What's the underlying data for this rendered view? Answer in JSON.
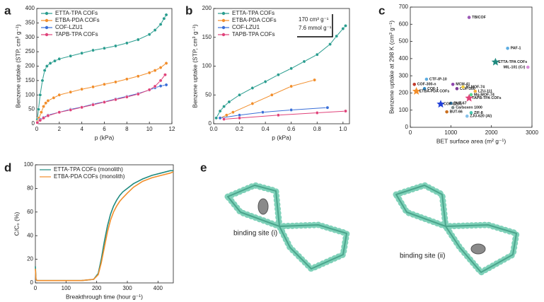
{
  "panels": [
    "a",
    "b",
    "c",
    "d",
    "e"
  ],
  "panel_e_labels": [
    "binding site (i)",
    "binding site (ii)"
  ],
  "chart_data": [
    {
      "type": "line",
      "xlabel": "p (kPa)",
      "ylabel": "Benzene uptake (STP, cm³ g⁻¹)",
      "xlim": [
        0,
        12
      ],
      "xticks": [
        0,
        2,
        4,
        6,
        8,
        10,
        12
      ],
      "ylim": [
        0,
        400
      ],
      "yticks": [
        0,
        50,
        100,
        150,
        200,
        250,
        300,
        350,
        400
      ],
      "legend": "upper left",
      "markers": true,
      "series": [
        {
          "name": "ETTA-TPA COFs",
          "color": "#2a9d8f",
          "x": [
            0.05,
            0.15,
            0.3,
            0.5,
            0.7,
            0.9,
            1.2,
            1.6,
            2,
            3,
            4,
            5,
            6,
            7,
            8,
            9,
            10,
            10.5,
            11,
            11.3,
            11.5
          ],
          "values": [
            15,
            50,
            100,
            150,
            185,
            200,
            210,
            218,
            225,
            235,
            245,
            255,
            262,
            270,
            280,
            292,
            310,
            325,
            345,
            365,
            378
          ]
        },
        {
          "name": "ETBA-PDA COFs",
          "color": "#f28e2b",
          "x": [
            0.05,
            0.2,
            0.4,
            0.6,
            0.8,
            1,
            1.5,
            2,
            3,
            4,
            5,
            6,
            7,
            8,
            9,
            10,
            10.5,
            11,
            11.5
          ],
          "values": [
            8,
            20,
            40,
            60,
            72,
            80,
            90,
            100,
            110,
            120,
            128,
            137,
            145,
            155,
            165,
            177,
            185,
            195,
            210
          ]
        },
        {
          "name": "COF-LZU1",
          "color": "#3a6fd8",
          "x": [
            0.05,
            0.3,
            0.6,
            1,
            2,
            3,
            4,
            5,
            6,
            7,
            8,
            9,
            10,
            10.5,
            11,
            11.5
          ],
          "values": [
            5,
            15,
            22,
            30,
            40,
            50,
            58,
            68,
            76,
            86,
            95,
            105,
            117,
            125,
            131,
            135
          ]
        },
        {
          "name": "TAPB-TPA COFs",
          "color": "#e0427a",
          "x": [
            0.05,
            0.3,
            0.6,
            1,
            2,
            3,
            4,
            5,
            6,
            7,
            8,
            9,
            10,
            10.5,
            11,
            11.4
          ],
          "values": [
            4,
            12,
            20,
            28,
            40,
            48,
            57,
            66,
            75,
            84,
            93,
            103,
            118,
            130,
            150,
            170
          ]
        }
      ]
    },
    {
      "type": "line",
      "xlabel": "p (kPa)",
      "ylabel": "Benzene uptake (STP, cm³ g⁻¹)",
      "xlim": [
        0,
        1.05
      ],
      "xticks": [
        {
          "value": 0,
          "label": "0.0"
        },
        {
          "value": 0.2,
          "label": "0.2"
        },
        {
          "value": 0.4,
          "label": "0.4"
        },
        {
          "value": 0.6,
          "label": "0.6"
        },
        {
          "value": 0.8,
          "label": "0.8"
        },
        {
          "value": 1,
          "label": "1.0"
        }
      ],
      "ylim": [
        0,
        200
      ],
      "yticks": [
        0,
        50,
        100,
        150,
        200
      ],
      "legend": "upper left",
      "markers": true,
      "annotations": [
        "170 cm³ g⁻¹",
        "7.6 mmol g⁻¹"
      ],
      "series": [
        {
          "name": "ETTA-TPA COFs",
          "color": "#2a9d8f",
          "x": [
            0.02,
            0.05,
            0.08,
            0.12,
            0.2,
            0.3,
            0.4,
            0.5,
            0.6,
            0.7,
            0.8,
            0.9,
            0.95,
            1.0,
            1.02
          ],
          "values": [
            10,
            22,
            30,
            38,
            50,
            62,
            73,
            85,
            96,
            108,
            120,
            138,
            152,
            165,
            170
          ]
        },
        {
          "name": "ETBA-PDA COFs",
          "color": "#f28e2b",
          "x": [
            0.05,
            0.1,
            0.15,
            0.3,
            0.45,
            0.6,
            0.78
          ],
          "values": [
            10,
            15,
            20,
            35,
            50,
            65,
            76
          ]
        },
        {
          "name": "COF-LZU1",
          "color": "#3a6fd8",
          "x": [
            0.05,
            0.2,
            0.38,
            0.6,
            0.88
          ],
          "values": [
            10,
            15,
            20,
            24,
            28
          ]
        },
        {
          "name": "TAPB-TPA COFs",
          "color": "#e0427a",
          "x": [
            0.08,
            0.2,
            0.5,
            0.8,
            1.02
          ],
          "values": [
            8,
            10,
            15,
            19,
            22
          ]
        }
      ]
    },
    {
      "type": "scatter",
      "xlabel": "BET surface area (m² g⁻¹)",
      "ylabel": "Benzene uptake at 298 K (cm³ g⁻¹)",
      "xlim": [
        0,
        3000
      ],
      "xticks": [
        0,
        1000,
        2000,
        3000
      ],
      "ylim": [
        0,
        700
      ],
      "yticks": [
        0,
        100,
        200,
        300,
        400,
        500,
        600,
        700
      ],
      "series": [
        {
          "name": "TBICOF",
          "color": "#9b59b6",
          "marker": "circle",
          "x": [
            1450
          ],
          "values": [
            640
          ]
        },
        {
          "name": "PAF-1",
          "color": "#5dade2",
          "marker": "circle",
          "x": [
            2400
          ],
          "values": [
            460
          ]
        },
        {
          "name": "ETTA-TPA COFs",
          "color": "#1f8a7f",
          "marker": "star",
          "x": [
            2100
          ],
          "values": [
            380
          ]
        },
        {
          "name": "MIL-101 (Cr)",
          "color": "#d98cd9",
          "marker": "circle",
          "x": [
            2900
          ],
          "values": [
            350
          ]
        },
        {
          "name": "CTF-IP-10",
          "color": "#5dade2",
          "marker": "circle",
          "x": [
            400
          ],
          "values": [
            280
          ]
        },
        {
          "name": "COF-300-n",
          "color": "#c0392b",
          "marker": "circle",
          "x": [
            100
          ],
          "values": [
            250
          ]
        },
        {
          "name": "MCM-41",
          "color": "#8e44ad",
          "marker": "circle",
          "x": [
            1050
          ],
          "values": [
            250
          ]
        },
        {
          "name": "COF-1",
          "color": "#2e86c1",
          "marker": "circle",
          "x": [
            350
          ],
          "values": [
            225
          ]
        },
        {
          "name": "COF-300",
          "color": "#7d3c98",
          "marker": "circle",
          "x": [
            1150
          ],
          "values": [
            225
          ]
        },
        {
          "name": "Ni-MOF-74",
          "color": "#f4d03f",
          "marker": "circle",
          "x": [
            1300
          ],
          "values": [
            235
          ]
        },
        {
          "name": "LZU-111",
          "color": "#f5b041",
          "marker": "circle",
          "x": [
            1600
          ],
          "values": [
            210
          ]
        },
        {
          "name": "ETBA-PDA COFs",
          "color": "#f28e2b",
          "marker": "star",
          "x": [
            150
          ],
          "values": [
            210
          ]
        },
        {
          "name": "Mg-MOF-74",
          "color": "#58d68d",
          "marker": "circle",
          "x": [
            1500
          ],
          "values": [
            190
          ]
        },
        {
          "name": "TAPB-TPA COFs",
          "color": "#e0427a",
          "marker": "star",
          "x": [
            1450
          ],
          "values": [
            170
          ]
        },
        {
          "name": "BUT-67",
          "color": "#2874a6",
          "marker": "circle",
          "x": [
            1000
          ],
          "values": [
            140
          ]
        },
        {
          "name": "COF-LZU1",
          "color": "#1f3fd8",
          "marker": "star",
          "x": [
            750
          ],
          "values": [
            135
          ]
        },
        {
          "name": "Carboxen 1000",
          "color": "#7f8c8d",
          "marker": "circle",
          "x": [
            1050
          ],
          "values": [
            115
          ]
        },
        {
          "name": "BUT-66",
          "color": "#ca6f1e",
          "marker": "circle",
          "x": [
            900
          ],
          "values": [
            90
          ]
        },
        {
          "name": "ZIF-8",
          "color": "#48c9b0",
          "marker": "circle",
          "x": [
            1500
          ],
          "values": [
            85
          ]
        },
        {
          "name": "ZJU-620 (Al)",
          "color": "#85c1e9",
          "marker": "circle",
          "x": [
            1400
          ],
          "values": [
            65
          ]
        }
      ]
    },
    {
      "type": "line",
      "xlabel": "Breakthrough time (hour g⁻¹)",
      "ylabel": "C/C₀ (%)",
      "xlim": [
        0,
        450
      ],
      "xticks": [
        0,
        100,
        200,
        300,
        400
      ],
      "ylim": [
        0,
        100
      ],
      "yticks": [
        0,
        20,
        40,
        60,
        80,
        100
      ],
      "legend": "upper left",
      "markers": false,
      "series": [
        {
          "name": "ETTA-TPA COFs (monolith)",
          "color": "#1f8a7f",
          "x": [
            0,
            2,
            5,
            10,
            50,
            100,
            150,
            190,
            205,
            215,
            225,
            235,
            245,
            255,
            265,
            275,
            285,
            300,
            320,
            350,
            380,
            410,
            440,
            450
          ],
          "values": [
            14,
            3,
            2,
            2,
            2,
            2,
            2,
            3,
            8,
            20,
            35,
            48,
            58,
            65,
            70,
            74,
            77,
            80,
            84,
            88,
            91,
            93,
            95,
            95
          ]
        },
        {
          "name": "ETBA-PDA COFs (monolith)",
          "color": "#f28e2b",
          "x": [
            0,
            2,
            5,
            10,
            50,
            100,
            150,
            190,
            205,
            215,
            225,
            235,
            245,
            255,
            265,
            275,
            285,
            300,
            320,
            350,
            380,
            410,
            440,
            450
          ],
          "values": [
            12,
            3,
            2,
            2,
            2,
            2,
            2,
            3,
            7,
            17,
            30,
            43,
            53,
            60,
            65,
            69,
            72,
            76,
            81,
            86,
            89,
            91,
            93,
            94
          ]
        }
      ]
    }
  ]
}
